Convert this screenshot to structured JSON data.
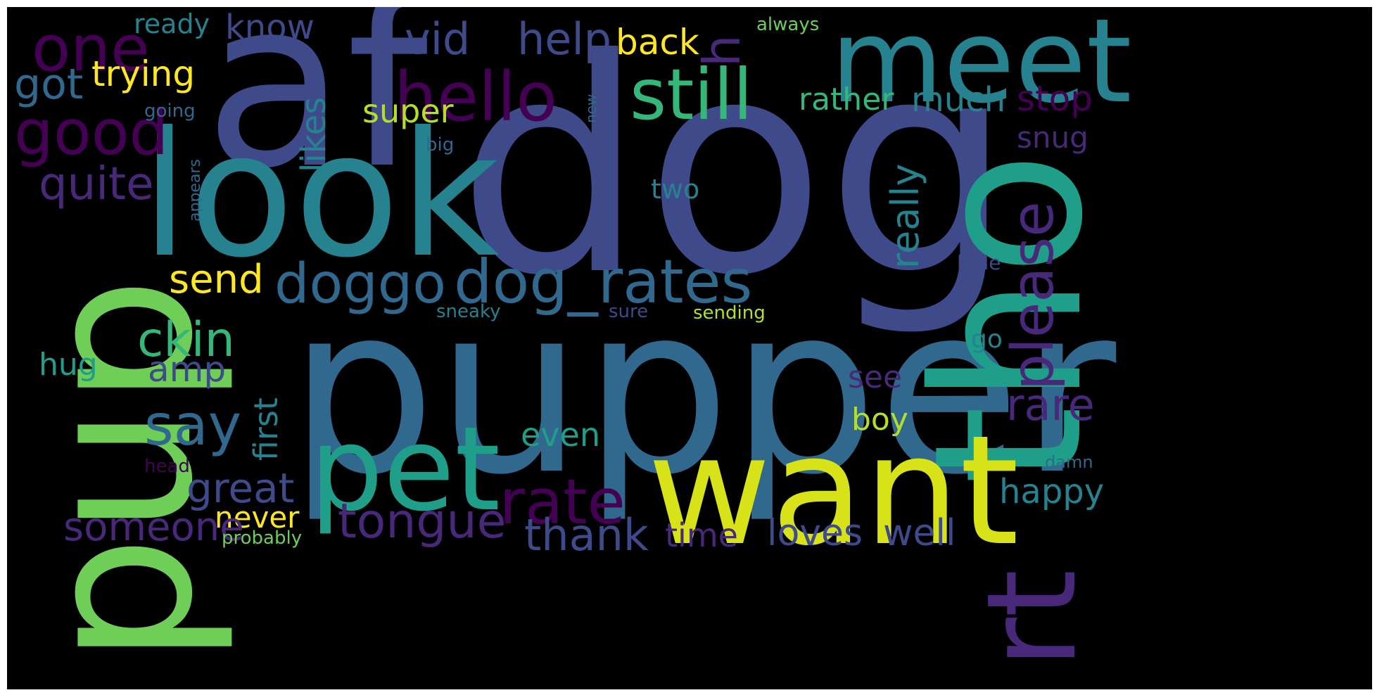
{
  "palette": {
    "background": "#000000",
    "frame": "#ffffff",
    "dark_purple": "#440154",
    "purple": "#482878",
    "indigo": "#3e4a89",
    "blue": "#31688e",
    "teal": "#26828e",
    "green_teal": "#1f9e89",
    "green": "#35b779",
    "light_green": "#6ece58",
    "yellow_green": "#b5de2b",
    "yellow": "#fde725"
  },
  "words": [
    {
      "text": "dog",
      "color": "#3e4a89"
    },
    {
      "text": "pupper",
      "color": "#31688e"
    },
    {
      "text": "af",
      "color": "#3e4a89"
    },
    {
      "text": "look",
      "color": "#26828e"
    },
    {
      "text": "pup",
      "color": "#6ece58"
    },
    {
      "text": "tho",
      "color": "#1f9e89"
    },
    {
      "text": "meet",
      "color": "#26828e"
    },
    {
      "text": "want",
      "color": "#d7e219"
    },
    {
      "text": "pet",
      "color": "#1f9e89"
    },
    {
      "text": "rt",
      "color": "#482878"
    },
    {
      "text": "hello",
      "color": "#440154"
    },
    {
      "text": "still",
      "color": "#35b779"
    },
    {
      "text": "one",
      "color": "#440154"
    },
    {
      "text": "vid",
      "color": "#3e4a89"
    },
    {
      "text": "help",
      "color": "#3e4a89"
    },
    {
      "text": "back",
      "color": "#fde725"
    },
    {
      "text": "h",
      "color": "#482878"
    },
    {
      "text": "ready",
      "color": "#26828e"
    },
    {
      "text": "know",
      "color": "#3e4a89"
    },
    {
      "text": "always",
      "color": "#6ece58"
    },
    {
      "text": "good",
      "color": "#440154"
    },
    {
      "text": "got",
      "color": "#31688e"
    },
    {
      "text": "trying",
      "color": "#fde725"
    },
    {
      "text": "super",
      "color": "#b5de2b"
    },
    {
      "text": "likes",
      "color": "#26828e"
    },
    {
      "text": "rather",
      "color": "#35b779"
    },
    {
      "text": "much",
      "color": "#26828e"
    },
    {
      "text": "stop",
      "color": "#440154"
    },
    {
      "text": "going",
      "color": "#31688e"
    },
    {
      "text": "new",
      "color": "#31688e"
    },
    {
      "text": "big",
      "color": "#31688e"
    },
    {
      "text": "snug",
      "color": "#482878"
    },
    {
      "text": "quite",
      "color": "#482878"
    },
    {
      "text": "really",
      "color": "#26828e"
    },
    {
      "text": "two",
      "color": "#26828e"
    },
    {
      "text": "please",
      "color": "#482878"
    },
    {
      "text": "appears",
      "color": "#31688e"
    },
    {
      "text": "little",
      "color": "#3e4a89"
    },
    {
      "text": "send",
      "color": "#fde725"
    },
    {
      "text": "doggo",
      "color": "#31688e"
    },
    {
      "text": "dog_rates",
      "color": "#31688e"
    },
    {
      "text": "sneaky",
      "color": "#26828e"
    },
    {
      "text": "sure",
      "color": "#3e4a89"
    },
    {
      "text": "sending",
      "color": "#b5de2b"
    },
    {
      "text": "ckin",
      "color": "#35b779"
    },
    {
      "text": "hug",
      "color": "#1f9e89"
    },
    {
      "text": "amp",
      "color": "#3e4a89"
    },
    {
      "text": "first",
      "color": "#26828e"
    },
    {
      "text": "go",
      "color": "#26828e"
    },
    {
      "text": "see",
      "color": "#482878"
    },
    {
      "text": "say",
      "color": "#31688e"
    },
    {
      "text": "rare",
      "color": "#482878"
    },
    {
      "text": "boy",
      "color": "#b5de2b"
    },
    {
      "text": "even",
      "color": "#1f9e89"
    },
    {
      "text": "great",
      "color": "#3e4a89"
    },
    {
      "text": "happy",
      "color": "#26828e"
    },
    {
      "text": "head",
      "color": "#440154"
    },
    {
      "text": "damn",
      "color": "#31688e"
    },
    {
      "text": "rate",
      "color": "#440154"
    },
    {
      "text": "never",
      "color": "#fde725"
    },
    {
      "text": "someone",
      "color": "#482878"
    },
    {
      "text": "tongue",
      "color": "#482878"
    },
    {
      "text": "thank",
      "color": "#3e4a89"
    },
    {
      "text": "time",
      "color": "#482878"
    },
    {
      "text": "loves",
      "color": "#3e4a89"
    },
    {
      "text": "well",
      "color": "#3e4a89"
    },
    {
      "text": "probably",
      "color": "#6ece58"
    }
  ]
}
